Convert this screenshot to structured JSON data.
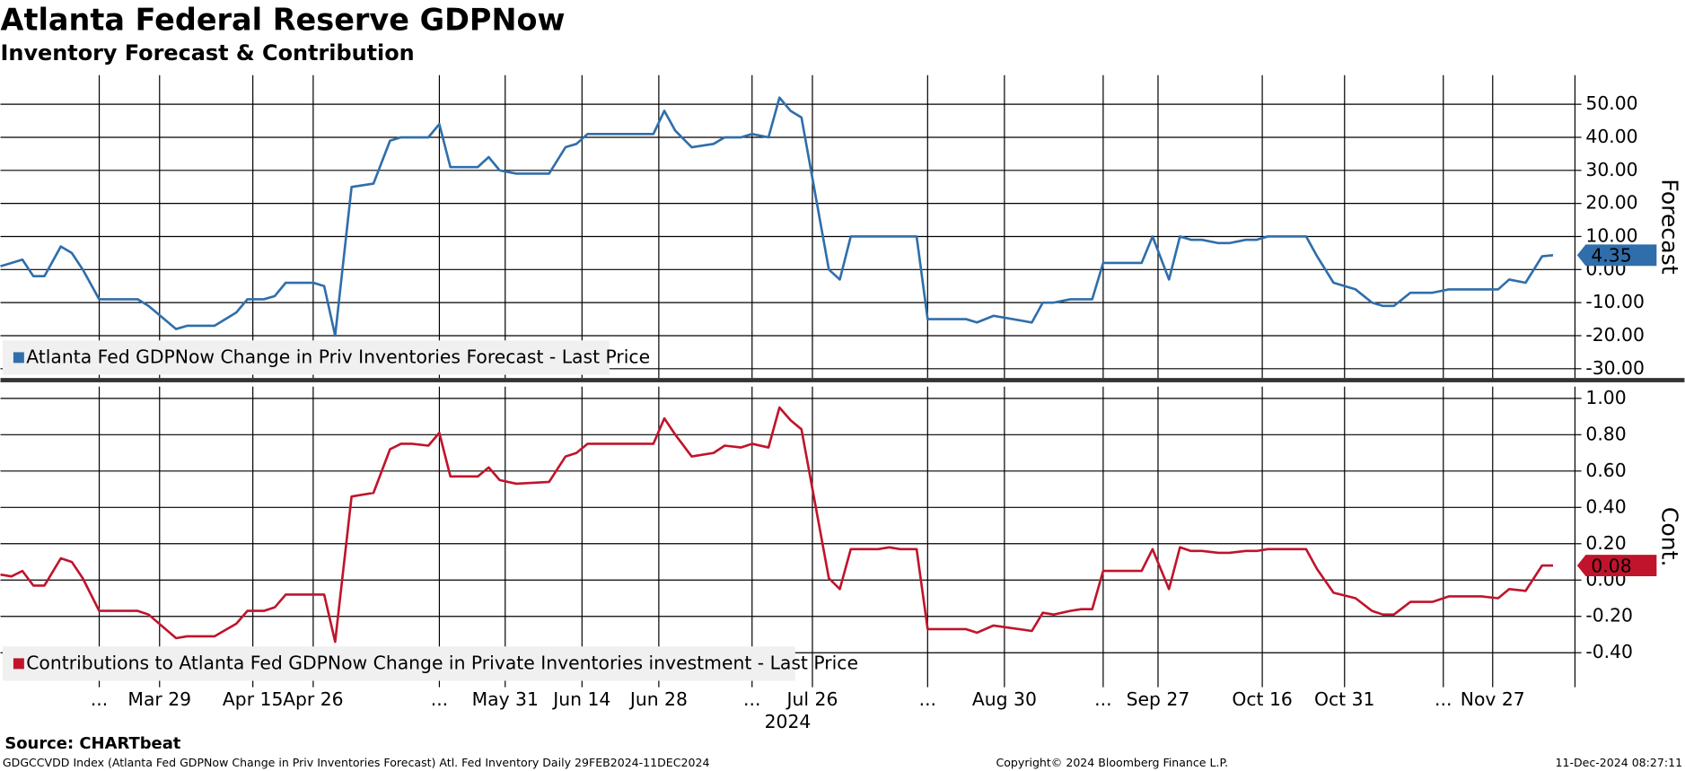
{
  "header": {
    "title": "Atlanta Federal Reserve GDPNow",
    "subtitle": "Inventory Forecast & Contribution"
  },
  "footer": {
    "source": "Source: CHARTbeat",
    "description": "GDGCCVDD Index (Atlanta Fed GDPNow Change in Priv Inventories Forecast) Atl. Fed Inventory  Daily 29FEB2024-11DEC2024",
    "copyright": "Copyright© 2024 Bloomberg Finance L.P.",
    "timestamp": "11-Dec-2024 08:27:11"
  },
  "chart_data": [
    {
      "type": "line",
      "ylabel": "Forecast",
      "xlim": [
        "2024-02-29",
        "2024-12-12"
      ],
      "x": [
        "2024-02-29",
        "2024-03-02",
        "2024-03-04",
        "2024-03-06",
        "2024-03-08",
        "2024-03-11",
        "2024-03-13",
        "2024-03-15",
        "2024-03-18",
        "2024-03-25",
        "2024-03-27",
        "2024-04-01",
        "2024-04-03",
        "2024-04-05",
        "2024-04-08",
        "2024-04-12",
        "2024-04-14",
        "2024-04-17",
        "2024-04-19",
        "2024-04-21",
        "2024-04-26",
        "2024-04-28",
        "2024-04-30",
        "2024-05-03",
        "2024-05-07",
        "2024-05-10",
        "2024-05-12",
        "2024-05-14",
        "2024-05-17",
        "2024-05-19",
        "2024-05-21",
        "2024-05-26",
        "2024-05-28",
        "2024-05-30",
        "2024-06-02",
        "2024-06-08",
        "2024-06-11",
        "2024-06-13",
        "2024-06-15",
        "2024-06-27",
        "2024-06-29",
        "2024-07-01",
        "2024-07-04",
        "2024-07-08",
        "2024-07-10",
        "2024-07-13",
        "2024-07-15",
        "2024-07-18",
        "2024-07-20",
        "2024-07-22",
        "2024-07-24",
        "2024-07-29",
        "2024-07-31",
        "2024-08-02",
        "2024-08-07",
        "2024-08-09",
        "2024-08-11",
        "2024-08-14",
        "2024-08-16",
        "2024-08-23",
        "2024-08-25",
        "2024-08-28",
        "2024-09-04",
        "2024-09-06",
        "2024-09-08",
        "2024-09-11",
        "2024-09-13",
        "2024-09-15",
        "2024-09-17",
        "2024-09-24",
        "2024-09-26",
        "2024-09-29",
        "2024-10-01",
        "2024-10-03",
        "2024-10-05",
        "2024-10-08",
        "2024-10-10",
        "2024-10-13",
        "2024-10-15",
        "2024-10-17",
        "2024-10-24",
        "2024-10-26",
        "2024-10-29",
        "2024-11-02",
        "2024-11-05",
        "2024-11-07",
        "2024-11-09",
        "2024-11-12",
        "2024-11-14",
        "2024-11-16",
        "2024-11-19",
        "2024-11-25",
        "2024-11-28",
        "2024-11-30",
        "2024-12-03",
        "2024-12-06",
        "2024-12-08"
      ],
      "series": [
        {
          "name": "Atlanta Fed GDPNow Change in Priv Inventories Forecast - Last Price",
          "color": "#2f6eab",
          "values": [
            1,
            2,
            3,
            -2,
            -2,
            7,
            5,
            0,
            -9,
            -9,
            -11,
            -18,
            -17,
            -17,
            -17,
            -13,
            -9,
            -9,
            -8,
            -4,
            -4,
            -5,
            -20,
            25,
            26,
            39,
            40,
            40,
            40,
            44,
            31,
            31,
            34,
            30,
            29,
            29,
            37,
            38,
            41,
            41,
            48,
            42,
            37,
            38,
            40,
            40,
            41,
            40,
            52,
            48,
            46,
            0,
            -3,
            10,
            10,
            10,
            10,
            10,
            -15,
            -15,
            -16,
            -14,
            -16,
            -10,
            -10,
            -9,
            -9,
            -9,
            2,
            2,
            10,
            -3,
            10,
            9,
            9,
            8,
            8,
            9,
            9,
            10,
            10,
            4,
            -4,
            -6,
            -10,
            -11,
            -11,
            -7,
            -7,
            -7,
            -6,
            -6,
            -6,
            -3,
            -4,
            4,
            4.35
          ]
        }
      ],
      "ylim": [
        -32.8,
        58.8
      ],
      "yticks": [
        {
          "value": 50,
          "label": "50.00"
        },
        {
          "value": 40,
          "label": "40.00"
        },
        {
          "value": 30,
          "label": "30.00"
        },
        {
          "value": 20,
          "label": "20.00"
        },
        {
          "value": 10,
          "label": "10.00"
        },
        {
          "value": 0,
          "label": "0.00"
        },
        {
          "value": -10,
          "label": "-10.00"
        },
        {
          "value": -20,
          "label": "-20.00"
        },
        {
          "value": -30,
          "label": "-30.00"
        }
      ],
      "grid": true
    },
    {
      "type": "line",
      "ylabel": "Cont.",
      "xlabel": "2024",
      "xlim": [
        "2024-02-29",
        "2024-12-12"
      ],
      "x": [
        "2024-02-29",
        "2024-03-02",
        "2024-03-04",
        "2024-03-06",
        "2024-03-08",
        "2024-03-11",
        "2024-03-13",
        "2024-03-15",
        "2024-03-18",
        "2024-03-25",
        "2024-03-27",
        "2024-04-01",
        "2024-04-03",
        "2024-04-05",
        "2024-04-08",
        "2024-04-12",
        "2024-04-14",
        "2024-04-17",
        "2024-04-19",
        "2024-04-21",
        "2024-04-26",
        "2024-04-28",
        "2024-04-30",
        "2024-05-03",
        "2024-05-07",
        "2024-05-10",
        "2024-05-12",
        "2024-05-14",
        "2024-05-17",
        "2024-05-19",
        "2024-05-21",
        "2024-05-26",
        "2024-05-28",
        "2024-05-30",
        "2024-06-02",
        "2024-06-08",
        "2024-06-11",
        "2024-06-13",
        "2024-06-15",
        "2024-06-27",
        "2024-06-29",
        "2024-07-01",
        "2024-07-04",
        "2024-07-08",
        "2024-07-10",
        "2024-07-13",
        "2024-07-15",
        "2024-07-18",
        "2024-07-20",
        "2024-07-22",
        "2024-07-24",
        "2024-07-29",
        "2024-07-31",
        "2024-08-02",
        "2024-08-07",
        "2024-08-09",
        "2024-08-11",
        "2024-08-14",
        "2024-08-16",
        "2024-08-23",
        "2024-08-25",
        "2024-08-28",
        "2024-09-04",
        "2024-09-06",
        "2024-09-08",
        "2024-09-11",
        "2024-09-13",
        "2024-09-15",
        "2024-09-17",
        "2024-09-24",
        "2024-09-26",
        "2024-09-29",
        "2024-10-01",
        "2024-10-03",
        "2024-10-05",
        "2024-10-08",
        "2024-10-10",
        "2024-10-13",
        "2024-10-15",
        "2024-10-17",
        "2024-10-24",
        "2024-10-26",
        "2024-10-29",
        "2024-11-02",
        "2024-11-05",
        "2024-11-07",
        "2024-11-09",
        "2024-11-12",
        "2024-11-14",
        "2024-11-16",
        "2024-11-19",
        "2024-11-25",
        "2024-11-28",
        "2024-11-30",
        "2024-12-03",
        "2024-12-06",
        "2024-12-08"
      ],
      "series": [
        {
          "name": "Contributions to Atlanta Fed GDPNow Change in Private Inventories investment - Last Price",
          "color": "#c0142c",
          "values": [
            0.03,
            0.02,
            0.05,
            -0.03,
            -0.03,
            0.12,
            0.1,
            0.01,
            -0.17,
            -0.17,
            -0.19,
            -0.32,
            -0.31,
            -0.31,
            -0.31,
            -0.24,
            -0.17,
            -0.17,
            -0.15,
            -0.08,
            -0.08,
            -0.08,
            -0.34,
            0.46,
            0.48,
            0.72,
            0.75,
            0.75,
            0.74,
            0.81,
            0.57,
            0.57,
            0.62,
            0.55,
            0.53,
            0.54,
            0.68,
            0.7,
            0.75,
            0.75,
            0.89,
            0.8,
            0.68,
            0.7,
            0.74,
            0.73,
            0.75,
            0.73,
            0.95,
            0.88,
            0.83,
            0.01,
            -0.05,
            0.17,
            0.17,
            0.18,
            0.17,
            0.17,
            -0.27,
            -0.27,
            -0.29,
            -0.25,
            -0.28,
            -0.18,
            -0.19,
            -0.17,
            -0.16,
            -0.16,
            0.05,
            0.05,
            0.17,
            -0.05,
            0.18,
            0.16,
            0.16,
            0.15,
            0.15,
            0.16,
            0.16,
            0.17,
            0.17,
            0.06,
            -0.07,
            -0.1,
            -0.17,
            -0.19,
            -0.19,
            -0.12,
            -0.12,
            -0.12,
            -0.09,
            -0.09,
            -0.1,
            -0.05,
            -0.06,
            0.08,
            0.08
          ]
        }
      ],
      "ylim": [
        -0.59,
        1.065
      ],
      "yticks": [
        {
          "value": 1,
          "label": "1.00"
        },
        {
          "value": 0.8,
          "label": "0.80"
        },
        {
          "value": 0.6,
          "label": "0.60"
        },
        {
          "value": 0.4,
          "label": "0.40"
        },
        {
          "value": 0.2,
          "label": "0.20"
        },
        {
          "value": 0,
          "label": "0.00"
        },
        {
          "value": -0.2,
          "label": "-0.20"
        },
        {
          "value": -0.4,
          "label": "-0.40"
        }
      ],
      "xticks": [
        {
          "value": "2024-03-18",
          "label": "..."
        },
        {
          "value": "2024-03-29",
          "label": "Mar 29"
        },
        {
          "value": "2024-04-15",
          "label": "Apr 15"
        },
        {
          "value": "2024-04-26",
          "label": "Apr 26"
        },
        {
          "value": "2024-05-19",
          "label": "..."
        },
        {
          "value": "2024-05-31",
          "label": "May 31"
        },
        {
          "value": "2024-06-14",
          "label": "Jun 14"
        },
        {
          "value": "2024-06-28",
          "label": "Jun 28"
        },
        {
          "value": "2024-07-15",
          "label": "..."
        },
        {
          "value": "2024-07-26",
          "label": "Jul 26"
        },
        {
          "value": "2024-08-16",
          "label": "..."
        },
        {
          "value": "2024-08-30",
          "label": "Aug 30"
        },
        {
          "value": "2024-09-17",
          "label": "..."
        },
        {
          "value": "2024-09-27",
          "label": "Sep 27"
        },
        {
          "value": "2024-10-16",
          "label": "Oct 16"
        },
        {
          "value": "2024-10-31",
          "label": "Oct 31"
        },
        {
          "value": "2024-11-18",
          "label": "..."
        },
        {
          "value": "2024-11-27",
          "label": "Nov 27"
        }
      ],
      "grid": true
    }
  ]
}
